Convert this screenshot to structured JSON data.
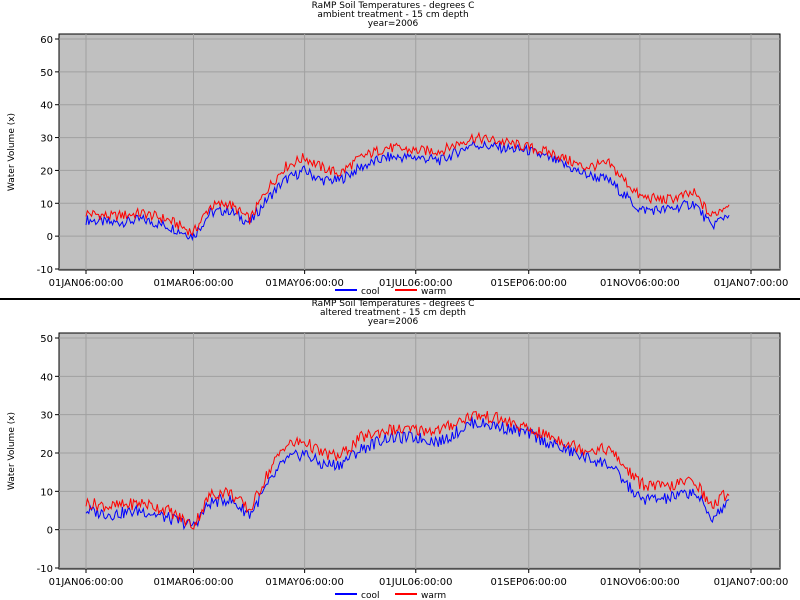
{
  "chart_data": [
    {
      "type": "line",
      "title": "RaMP Soil Temperatures - degrees C",
      "subtitle": "ambient treatment - 15 cm depth",
      "subtitle2": "year=2006",
      "xlabel": "",
      "ylabel": "Water Volume (x)",
      "ylim": [
        -10,
        60
      ],
      "yticks": [
        "-10",
        "0",
        "10",
        "20",
        "30",
        "40",
        "50",
        "60"
      ],
      "xticks": [
        "01JAN06:00:00",
        "01MAR06:00:00",
        "01MAY06:00:00",
        "01JUL06:00:00",
        "01SEP06:00:00",
        "01NOV06:00:00",
        "01JAN07:00:00"
      ],
      "grid": true,
      "legend_placement": "top-center",
      "x": [
        "2006-01-01",
        "2006-01-15",
        "2006-02-01",
        "2006-02-15",
        "2006-03-01",
        "2006-03-10",
        "2006-03-20",
        "2006-04-01",
        "2006-04-10",
        "2006-04-20",
        "2006-05-01",
        "2006-05-10",
        "2006-05-20",
        "2006-06-01",
        "2006-06-15",
        "2006-07-01",
        "2006-07-15",
        "2006-08-01",
        "2006-08-15",
        "2006-09-01",
        "2006-09-15",
        "2006-10-01",
        "2006-10-15",
        "2006-11-01",
        "2006-11-15",
        "2006-12-01",
        "2006-12-10",
        "2006-12-20"
      ],
      "series": [
        {
          "name": "cool",
          "color": "#0000ff",
          "values": [
            5,
            4,
            5,
            3,
            0,
            7,
            8,
            4,
            11,
            17,
            20,
            17,
            17,
            21,
            24,
            24,
            23,
            28,
            27,
            26,
            23,
            19,
            17,
            8,
            8,
            10,
            3,
            7
          ]
        },
        {
          "name": "warm",
          "color": "#ff0000",
          "values": [
            7,
            6,
            7,
            5,
            1,
            9,
            10,
            5,
            14,
            21,
            24,
            21,
            19,
            24,
            27,
            26,
            26,
            30,
            29,
            27,
            25,
            21,
            22,
            12,
            11,
            13,
            6,
            10
          ]
        }
      ]
    },
    {
      "type": "line",
      "title": "RaMP Soil Temperatures - degrees C",
      "subtitle": "altered treatment - 15 cm depth",
      "subtitle2": "year=2006",
      "xlabel": "",
      "ylabel": "Water Volume (x)",
      "ylim": [
        -10,
        50
      ],
      "yticks": [
        "-10",
        "0",
        "10",
        "20",
        "30",
        "40",
        "50"
      ],
      "xticks": [
        "01JAN06:00:00",
        "01MAR06:00:00",
        "01MAY06:00:00",
        "01JUL06:00:00",
        "01SEP06:00:00",
        "01NOV06:00:00",
        "01JAN07:00:00"
      ],
      "grid": true,
      "legend_placement": "bottom-center",
      "x": [
        "2006-01-01",
        "2006-01-15",
        "2006-02-01",
        "2006-02-15",
        "2006-03-01",
        "2006-03-10",
        "2006-03-20",
        "2006-04-01",
        "2006-04-10",
        "2006-04-20",
        "2006-05-01",
        "2006-05-10",
        "2006-05-20",
        "2006-06-01",
        "2006-06-15",
        "2006-07-01",
        "2006-07-15",
        "2006-08-01",
        "2006-08-15",
        "2006-09-01",
        "2006-09-15",
        "2006-10-01",
        "2006-10-15",
        "2006-11-01",
        "2006-11-15",
        "2006-12-01",
        "2006-12-10",
        "2006-12-20"
      ],
      "series": [
        {
          "name": "cool",
          "color": "#0000ff",
          "values": [
            5,
            4,
            5,
            3,
            1,
            7,
            8,
            4,
            11,
            18,
            20,
            17,
            17,
            21,
            24,
            24,
            23,
            28,
            27,
            25,
            22,
            19,
            17,
            8,
            8,
            10,
            3,
            7
          ]
        },
        {
          "name": "warm",
          "color": "#ff0000",
          "values": [
            7,
            6,
            7,
            5,
            1,
            9,
            10,
            5,
            14,
            22,
            23,
            20,
            19,
            24,
            26,
            26,
            26,
            30,
            29,
            26,
            24,
            21,
            21,
            12,
            11,
            13,
            6,
            10
          ]
        }
      ]
    }
  ]
}
